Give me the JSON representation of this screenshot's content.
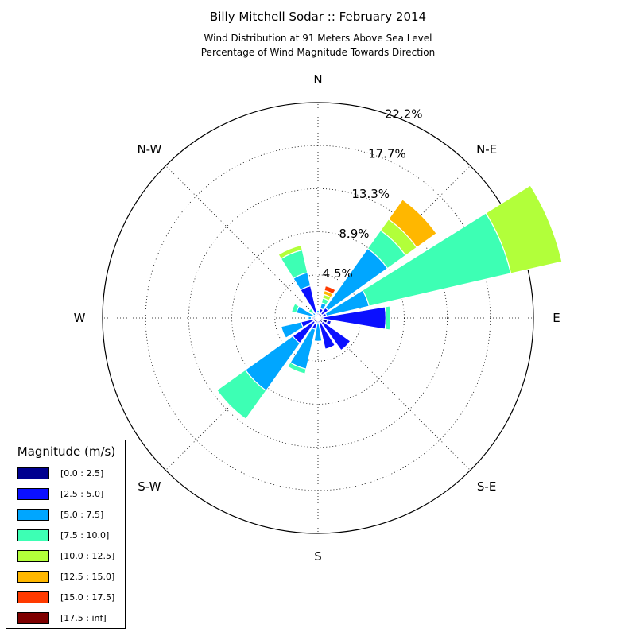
{
  "chart_data": {
    "type": "windrose",
    "title": "Billy Mitchell Sodar :: February 2014",
    "subtitle": [
      "Wind Distribution at 91 Meters Above Sea Level",
      "Percentage of Wind Magnitude Towards Direction"
    ],
    "directions": [
      "N",
      "N-E",
      "E",
      "S-E",
      "S",
      "S-W",
      "W",
      "N-W"
    ],
    "radial_labels": [
      "4.5%",
      "8.9%",
      "13.3%",
      "17.7%",
      "22.2%"
    ],
    "radial_ticks": [
      4.44,
      8.88,
      13.32,
      17.76,
      22.2
    ],
    "rmax": 22.2,
    "grid": true,
    "sector_width_deg": 22.5,
    "sectors": [
      {
        "direction_deg": 0,
        "values": [
          0.2,
          0.3,
          0.3,
          0,
          0,
          0,
          0,
          0
        ]
      },
      {
        "direction_deg": 22.5,
        "values": [
          0.5,
          0.5,
          0.6,
          0.5,
          0.4,
          0.4,
          0.5,
          0
        ]
      },
      {
        "direction_deg": 45,
        "values": [
          0.5,
          0.8,
          7.5,
          2.3,
          1.4,
          2.5,
          0,
          0
        ]
      },
      {
        "direction_deg": 67.5,
        "values": [
          0.4,
          0.5,
          4.5,
          15.0,
          5.4,
          0,
          0,
          0
        ]
      },
      {
        "direction_deg": 90,
        "values": [
          0.5,
          6.5,
          0,
          0.5,
          0,
          0,
          0,
          0
        ]
      },
      {
        "direction_deg": 112.5,
        "values": [
          1.0,
          0.4,
          0,
          0,
          0,
          0,
          0,
          0
        ]
      },
      {
        "direction_deg": 135,
        "values": [
          0.6,
          3.5,
          0,
          0,
          0,
          0,
          0,
          0
        ]
      },
      {
        "direction_deg": 157.5,
        "values": [
          0.3,
          3.0,
          0,
          0,
          0,
          0,
          0,
          0
        ]
      },
      {
        "direction_deg": 180,
        "values": [
          0.3,
          0.2,
          1.9,
          0,
          0,
          0,
          0,
          0
        ]
      },
      {
        "direction_deg": 202.5,
        "values": [
          0.6,
          0.6,
          4.2,
          0.5,
          0,
          0,
          0,
          0
        ]
      },
      {
        "direction_deg": 225,
        "values": [
          0.5,
          2.7,
          6.0,
          3.6,
          0,
          0,
          0,
          0
        ]
      },
      {
        "direction_deg": 247.5,
        "values": [
          0.5,
          1.3,
          2.1,
          0,
          0,
          0,
          0,
          0
        ]
      },
      {
        "direction_deg": 270,
        "values": [
          0.5,
          0.2,
          0.3,
          0,
          0,
          0,
          0,
          0
        ]
      },
      {
        "direction_deg": 292.5,
        "values": [
          0.1,
          0.1,
          2.1,
          0.5,
          0,
          0,
          0,
          0
        ]
      },
      {
        "direction_deg": 315,
        "values": [
          0.2,
          0.2,
          0.3,
          0.5,
          0,
          0,
          0,
          0
        ]
      },
      {
        "direction_deg": 337.5,
        "values": [
          0.4,
          3.0,
          1.4,
          2.4,
          0.5,
          0,
          0,
          0
        ]
      }
    ]
  },
  "legend": {
    "title": "Magnitude (m/s)",
    "items": [
      {
        "label": "[0.0 : 2.5]",
        "color": "#00008f"
      },
      {
        "label": "[2.5 : 5.0]",
        "color": "#0b10ff"
      },
      {
        "label": "[5.0 : 7.5]",
        "color": "#00a6ff"
      },
      {
        "label": "[7.5 : 10.0]",
        "color": "#3dffb4"
      },
      {
        "label": "[10.0 : 12.5]",
        "color": "#b2ff3a"
      },
      {
        "label": "[12.5 : 15.0]",
        "color": "#ffb700"
      },
      {
        "label": "[15.0 : 17.5]",
        "color": "#ff3a00"
      },
      {
        "label": "[17.5 : inf]",
        "color": "#7f0000"
      }
    ]
  }
}
